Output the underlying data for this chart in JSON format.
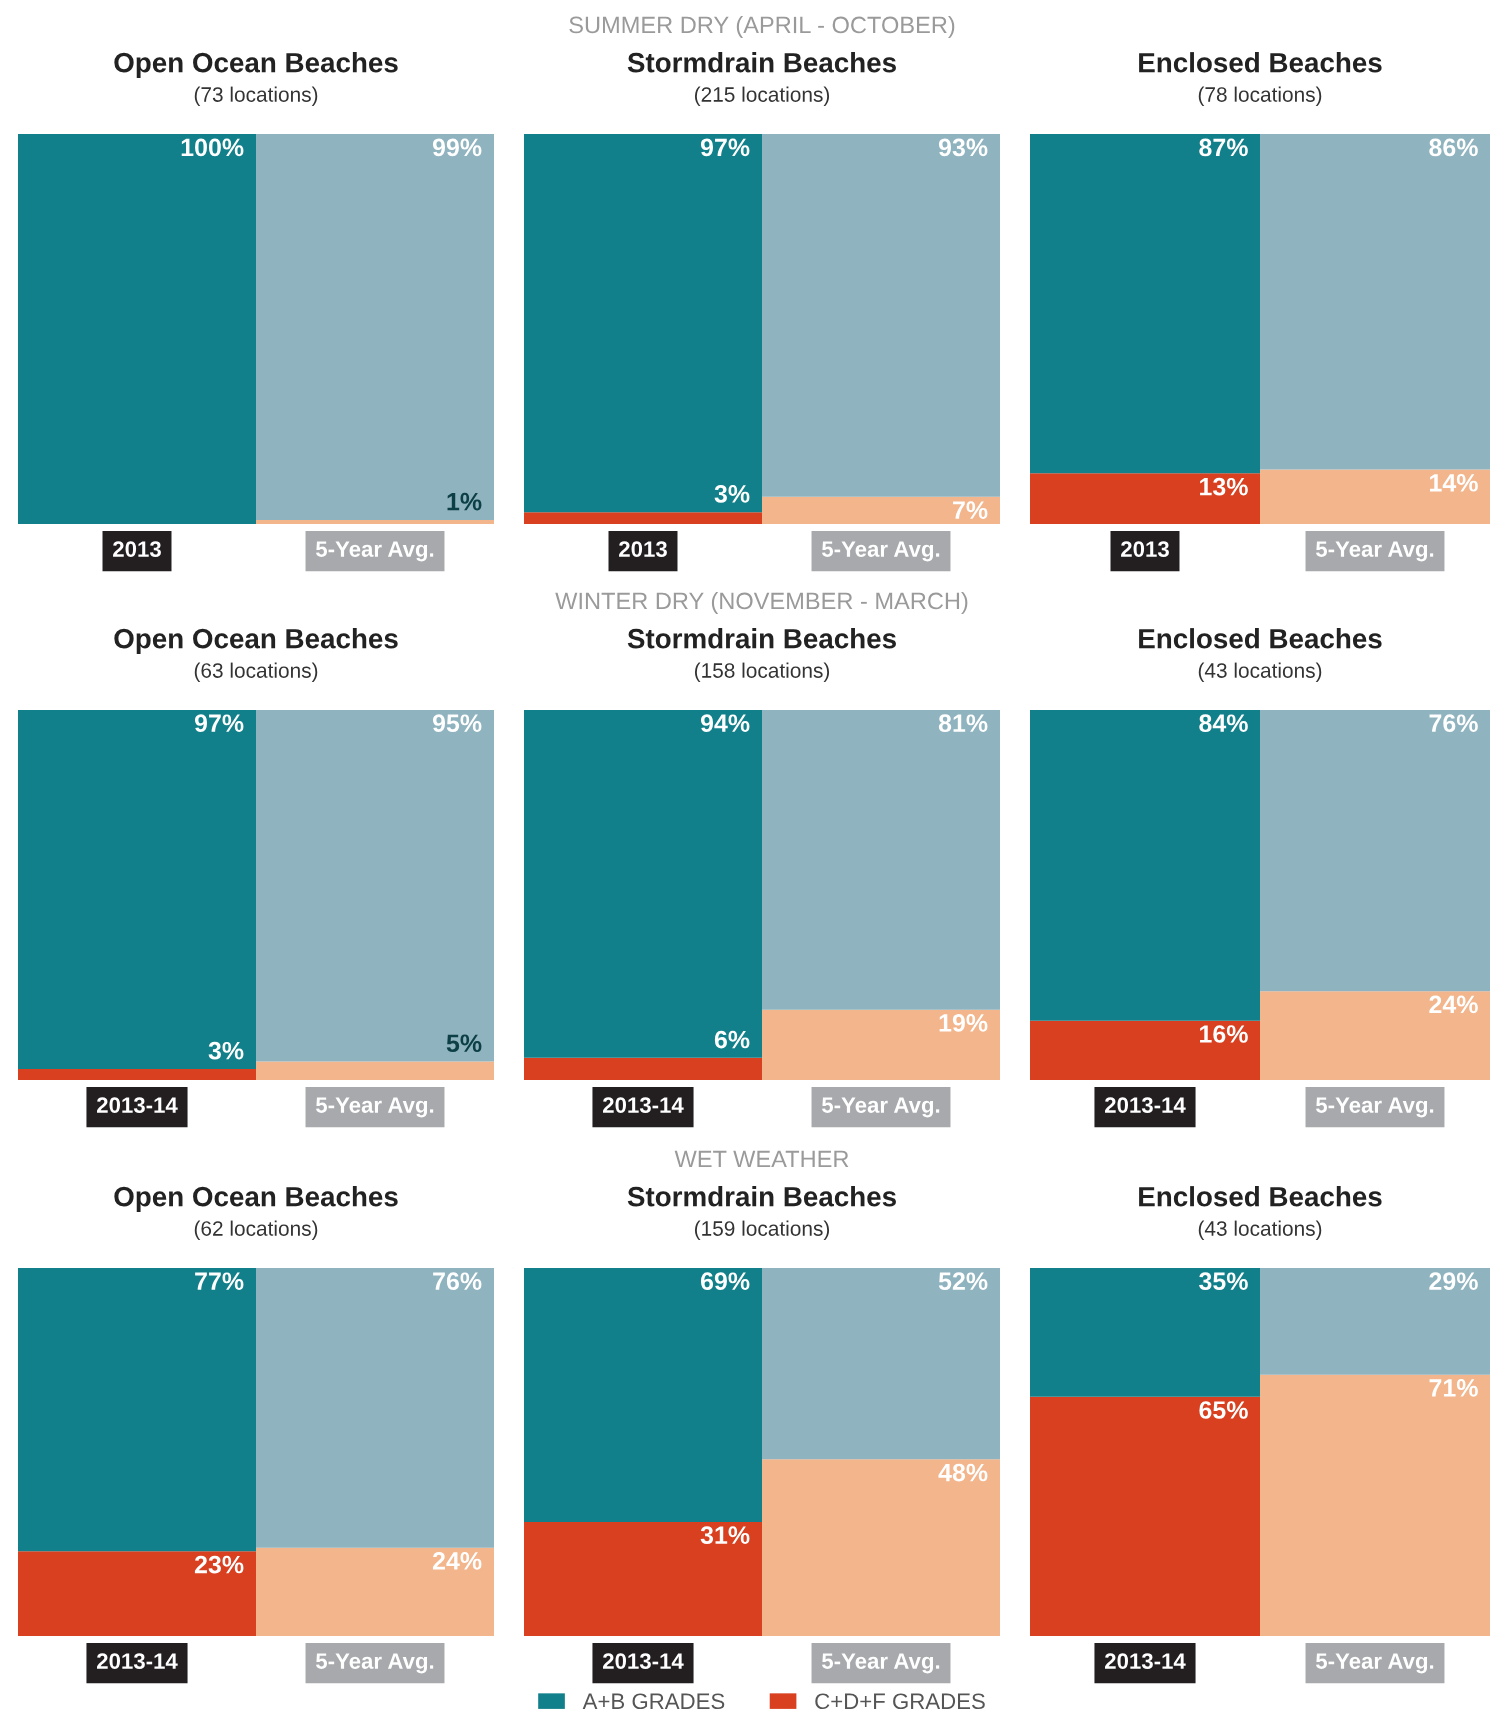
{
  "chart_data": [
    {
      "type": "bar",
      "stacked": true,
      "title": "Open Ocean Beaches",
      "subtitle": "(73 locations)",
      "categories": [
        "2013",
        "5-Year Avg."
      ],
      "ylim": [
        0,
        100
      ],
      "tick_labels": "x",
      "series": [
        {
          "colors": [
            "#d8401f",
            "#f2b58c"
          ],
          "values": [
            0,
            1
          ],
          "value_labels": [
            null,
            "1%"
          ]
        },
        {
          "colors": [
            "#12808a",
            "#8fb3bf"
          ],
          "values": [
            100,
            99
          ],
          "value_labels": [
            "100%",
            "99%"
          ]
        }
      ]
    },
    {
      "type": "bar",
      "stacked": true,
      "title": "Stormdrain Beaches",
      "subtitle": "(215 locations)",
      "annotations": [
        "SUMMER DRY (APRIL - OCTOBER)"
      ],
      "categories": [
        "2013",
        "5-Year Avg."
      ],
      "ylim": [
        0,
        100
      ],
      "tick_labels": "x",
      "series": [
        {
          "colors": [
            "#d8401f",
            "#f2b58c"
          ],
          "values": [
            3,
            7
          ],
          "value_labels": [
            "3%",
            "7%"
          ]
        },
        {
          "colors": [
            "#12808a",
            "#8fb3bf"
          ],
          "values": [
            97,
            93
          ],
          "value_labels": [
            "97%",
            "93%"
          ]
        }
      ]
    },
    {
      "type": "bar",
      "stacked": true,
      "title": "Enclosed Beaches",
      "subtitle": "(78 locations)",
      "categories": [
        "2013",
        "5-Year Avg."
      ],
      "ylim": [
        0,
        100
      ],
      "tick_labels": "x",
      "series": [
        {
          "colors": [
            "#d8401f",
            "#f2b58c"
          ],
          "values": [
            13,
            14
          ],
          "value_labels": [
            "13%",
            "14%"
          ]
        },
        {
          "colors": [
            "#12808a",
            "#8fb3bf"
          ],
          "values": [
            87,
            86
          ],
          "value_labels": [
            "87%",
            "86%"
          ]
        }
      ]
    },
    {
      "type": "bar",
      "stacked": true,
      "title": "Open Ocean Beaches",
      "subtitle": "(63 locations)",
      "categories": [
        "2013-14",
        "5-Year Avg."
      ],
      "ylim": [
        0,
        100
      ],
      "tick_labels": "x",
      "series": [
        {
          "colors": [
            "#d8401f",
            "#f2b58c"
          ],
          "values": [
            3,
            5
          ],
          "value_labels": [
            "3%",
            "5%"
          ]
        },
        {
          "colors": [
            "#12808a",
            "#8fb3bf"
          ],
          "values": [
            97,
            95
          ],
          "value_labels": [
            "97%",
            "95%"
          ]
        }
      ]
    },
    {
      "type": "bar",
      "stacked": true,
      "title": "Stormdrain Beaches",
      "subtitle": "(158 locations)",
      "annotations": [
        "WINTER DRY (NOVEMBER - MARCH)"
      ],
      "categories": [
        "2013-14",
        "5-Year Avg."
      ],
      "ylim": [
        0,
        100
      ],
      "tick_labels": "x",
      "series": [
        {
          "colors": [
            "#d8401f",
            "#f2b58c"
          ],
          "values": [
            6,
            19
          ],
          "value_labels": [
            "6%",
            "19%"
          ]
        },
        {
          "colors": [
            "#12808a",
            "#8fb3bf"
          ],
          "values": [
            94,
            81
          ],
          "value_labels": [
            "94%",
            "81%"
          ]
        }
      ]
    },
    {
      "type": "bar",
      "stacked": true,
      "title": "Enclosed Beaches",
      "subtitle": "(43 locations)",
      "categories": [
        "2013-14",
        "5-Year Avg."
      ],
      "ylim": [
        0,
        100
      ],
      "tick_labels": "x",
      "series": [
        {
          "colors": [
            "#d8401f",
            "#f2b58c"
          ],
          "values": [
            16,
            24
          ],
          "value_labels": [
            "16%",
            "24%"
          ]
        },
        {
          "colors": [
            "#12808a",
            "#8fb3bf"
          ],
          "values": [
            84,
            76
          ],
          "value_labels": [
            "84%",
            "76%"
          ]
        }
      ]
    },
    {
      "type": "bar",
      "stacked": true,
      "title": "Open Ocean Beaches",
      "subtitle": "(62 locations)",
      "categories": [
        "2013-14",
        "5-Year Avg."
      ],
      "ylim": [
        0,
        100
      ],
      "tick_labels": "x",
      "series": [
        {
          "colors": [
            "#d8401f",
            "#f2b58c"
          ],
          "values": [
            23,
            24
          ],
          "value_labels": [
            "23%",
            "24%"
          ]
        },
        {
          "colors": [
            "#12808a",
            "#8fb3bf"
          ],
          "values": [
            77,
            76
          ],
          "value_labels": [
            "77%",
            "76%"
          ]
        }
      ]
    },
    {
      "type": "bar",
      "stacked": true,
      "title": "Stormdrain Beaches",
      "subtitle": "(159 locations)",
      "annotations": [
        "WET WEATHER"
      ],
      "categories": [
        "2013-14",
        "5-Year Avg."
      ],
      "ylim": [
        0,
        100
      ],
      "tick_labels": "x",
      "legend": "bottom",
      "series": [
        {
          "name": "C+D+F GRADES",
          "color": "#d8401f",
          "colors": [
            "#d8401f",
            "#f2b58c"
          ],
          "values": [
            31,
            48
          ],
          "value_labels": [
            "31%",
            "48%"
          ]
        },
        {
          "name": "A+B GRADES",
          "color": "#12808a",
          "colors": [
            "#12808a",
            "#8fb3bf"
          ],
          "values": [
            69,
            52
          ],
          "value_labels": [
            "69%",
            "52%"
          ]
        }
      ]
    },
    {
      "type": "bar",
      "stacked": true,
      "title": "Enclosed Beaches",
      "subtitle": "(43 locations)",
      "categories": [
        "2013-14",
        "5-Year Avg."
      ],
      "ylim": [
        0,
        100
      ],
      "tick_labels": "x",
      "series": [
        {
          "colors": [
            "#d8401f",
            "#f2b58c"
          ],
          "values": [
            65,
            71
          ],
          "value_labels": [
            "65%",
            "71%"
          ]
        },
        {
          "colors": [
            "#12808a",
            "#8fb3bf"
          ],
          "values": [
            35,
            29
          ],
          "value_labels": [
            "35%",
            "29%"
          ]
        }
      ]
    }
  ]
}
